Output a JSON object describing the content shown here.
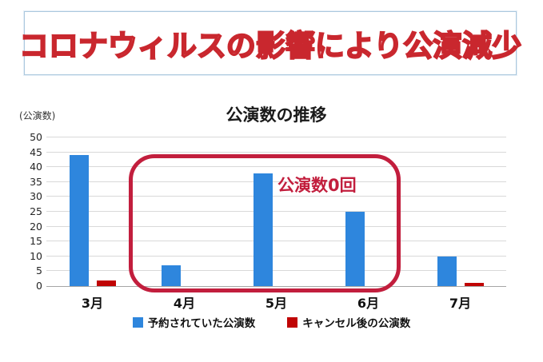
{
  "banner": {
    "title": "コロナウィルスの影響により公演減少"
  },
  "colors": {
    "banner_border": "#ABC8DE",
    "banner_text_fill": "#F4A9AE",
    "banner_text_outline": "#C9272E",
    "bar_blue": "#2E86DD",
    "bar_red": "#C00404",
    "annotation_red": "#C21E3D",
    "gridline": "#D9D9D9",
    "axis": "#A6A6A6"
  },
  "chart_data": {
    "type": "bar",
    "title": "公演数の推移",
    "unit_label": "(公演数)",
    "annotation_label": "公演数0回",
    "categories": [
      "3月",
      "4月",
      "5月",
      "6月",
      "7月"
    ],
    "series": [
      {
        "name": "予約されていた公演数",
        "color": "#2E86DD",
        "values": [
          44,
          7,
          38,
          25,
          10
        ]
      },
      {
        "name": "キャンセル後の公演数",
        "color": "#C00404",
        "values": [
          2,
          0,
          0,
          0,
          1
        ]
      }
    ],
    "ylim": [
      0,
      50
    ],
    "ytick_step": 5,
    "grid": true,
    "legend_position": "bottom"
  }
}
